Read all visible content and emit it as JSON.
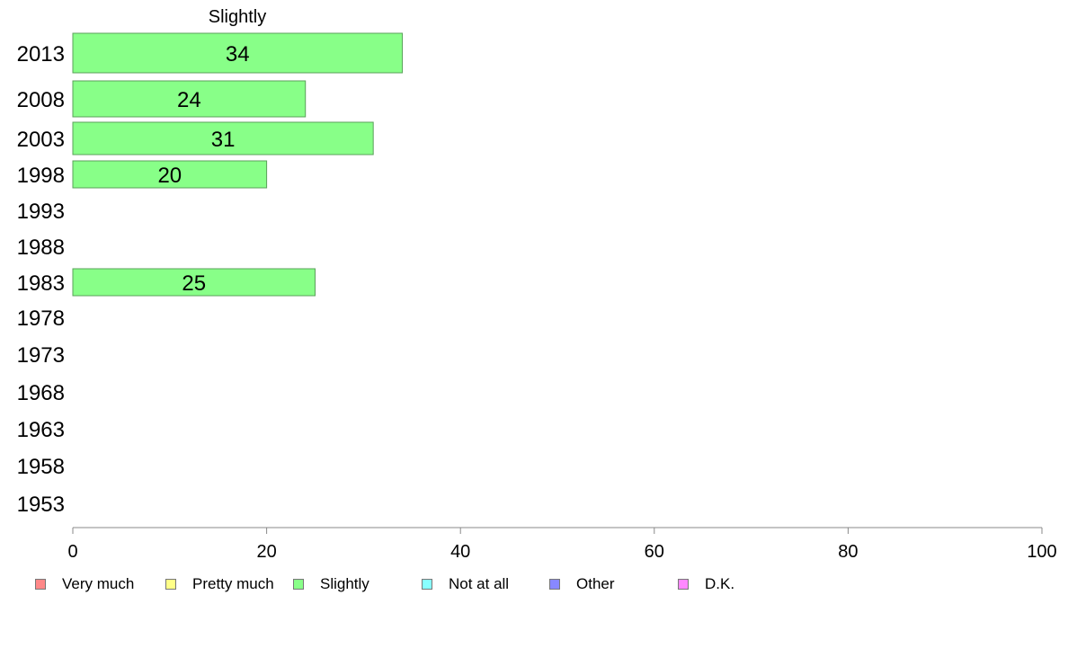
{
  "chart_data": {
    "type": "bar",
    "orientation": "horizontal",
    "title": "Slightly",
    "categories": [
      "2013",
      "2008",
      "2003",
      "1998",
      "1993",
      "1988",
      "1983",
      "1978",
      "1973",
      "1968",
      "1963",
      "1958",
      "1953"
    ],
    "series": [
      {
        "name": "Slightly",
        "color": "#88ff88",
        "values": [
          34,
          24,
          31,
          20,
          null,
          null,
          25,
          null,
          null,
          null,
          null,
          null,
          null
        ]
      }
    ],
    "xlim": [
      0,
      100
    ],
    "xticks": [
      0,
      20,
      40,
      60,
      80,
      100
    ],
    "grid": false,
    "legend_position": "bottom",
    "legend": [
      {
        "label": "Very much",
        "color": "#ff8888"
      },
      {
        "label": "Pretty much",
        "color": "#ffff88"
      },
      {
        "label": "Slightly",
        "color": "#88ff88"
      },
      {
        "label": "Not at all",
        "color": "#88ffff"
      },
      {
        "label": "Other",
        "color": "#8888ff"
      },
      {
        "label": "D.K.",
        "color": "#ff88ff"
      }
    ]
  }
}
